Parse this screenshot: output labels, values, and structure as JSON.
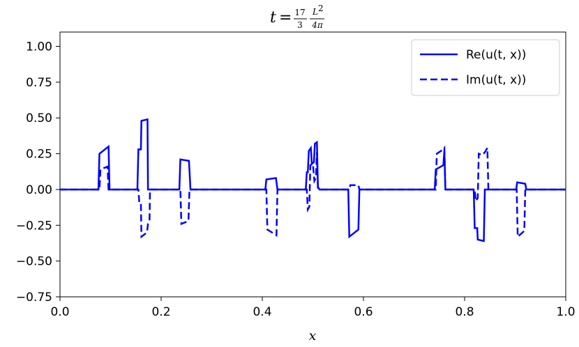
{
  "chart_data": {
    "type": "line",
    "title": {
      "lhs": "t",
      "eq": "=",
      "frac1_num": "17",
      "frac1_den": "3",
      "frac2_num": "L",
      "frac2_num_sup": "2",
      "frac2_den": "4π"
    },
    "xlabel": "x",
    "ylabel": "",
    "xlim": [
      0.0,
      1.0
    ],
    "ylim": [
      -0.75,
      1.1
    ],
    "x_ticks": [
      "0.0",
      "0.2",
      "0.4",
      "0.6",
      "0.8",
      "1.0"
    ],
    "x_tick_values": [
      0.0,
      0.2,
      0.4,
      0.6,
      0.8,
      1.0
    ],
    "y_ticks": [
      "1.00",
      "0.75",
      "0.50",
      "0.25",
      "0.00",
      "−0.25",
      "−0.50",
      "−0.75"
    ],
    "y_tick_values": [
      1.0,
      0.75,
      0.5,
      0.25,
      0.0,
      -0.25,
      -0.5,
      -0.75
    ],
    "grid": false,
    "legend_position": "top-right",
    "color": "#0000ff",
    "series": [
      {
        "name": "Re(u(t, x))",
        "style": "solid",
        "points": [
          [
            0.0,
            0.0
          ],
          [
            0.076,
            0.0
          ],
          [
            0.078,
            0.25
          ],
          [
            0.096,
            0.3
          ],
          [
            0.098,
            0.0
          ],
          [
            0.153,
            0.0
          ],
          [
            0.155,
            0.28
          ],
          [
            0.16,
            0.28
          ],
          [
            0.161,
            0.48
          ],
          [
            0.173,
            0.49
          ],
          [
            0.174,
            0.0
          ],
          [
            0.236,
            0.0
          ],
          [
            0.238,
            0.21
          ],
          [
            0.255,
            0.2
          ],
          [
            0.258,
            0.0
          ],
          [
            0.406,
            0.0
          ],
          [
            0.408,
            0.07
          ],
          [
            0.427,
            0.08
          ],
          [
            0.43,
            0.0
          ],
          [
            0.486,
            0.0
          ],
          [
            0.488,
            0.12
          ],
          [
            0.49,
            0.12
          ],
          [
            0.492,
            0.27
          ],
          [
            0.496,
            0.29
          ],
          [
            0.498,
            0.18
          ],
          [
            0.502,
            0.19
          ],
          [
            0.504,
            0.32
          ],
          [
            0.508,
            0.33
          ],
          [
            0.51,
            0.02
          ],
          [
            0.513,
            0.0
          ],
          [
            0.57,
            0.0
          ],
          [
            0.572,
            -0.33
          ],
          [
            0.59,
            -0.28
          ],
          [
            0.592,
            0.0
          ],
          [
            0.741,
            0.0
          ],
          [
            0.743,
            0.14
          ],
          [
            0.758,
            0.17
          ],
          [
            0.76,
            0.27
          ],
          [
            0.762,
            0.0
          ],
          [
            0.818,
            0.0
          ],
          [
            0.82,
            -0.27
          ],
          [
            0.825,
            -0.27
          ],
          [
            0.826,
            -0.35
          ],
          [
            0.838,
            -0.36
          ],
          [
            0.84,
            0.0
          ],
          [
            0.902,
            0.0
          ],
          [
            0.904,
            0.05
          ],
          [
            0.92,
            0.04
          ],
          [
            0.922,
            0.0
          ],
          [
            1.0,
            0.0
          ]
        ]
      },
      {
        "name": "Im(u(t, x))",
        "style": "dashed",
        "points": [
          [
            0.0,
            0.0
          ],
          [
            0.078,
            0.0
          ],
          [
            0.08,
            0.14
          ],
          [
            0.094,
            0.16
          ],
          [
            0.096,
            0.0
          ],
          [
            0.155,
            0.0
          ],
          [
            0.157,
            -0.1
          ],
          [
            0.16,
            -0.1
          ],
          [
            0.161,
            -0.33
          ],
          [
            0.172,
            -0.3
          ],
          [
            0.174,
            -0.24
          ],
          [
            0.177,
            -0.22
          ],
          [
            0.178,
            0.0
          ],
          [
            0.238,
            0.0
          ],
          [
            0.24,
            -0.24
          ],
          [
            0.254,
            -0.22
          ],
          [
            0.256,
            0.0
          ],
          [
            0.408,
            0.0
          ],
          [
            0.41,
            -0.28
          ],
          [
            0.428,
            -0.32
          ],
          [
            0.43,
            0.0
          ],
          [
            0.488,
            0.0
          ],
          [
            0.49,
            -0.14
          ],
          [
            0.493,
            -0.12
          ],
          [
            0.495,
            0.17
          ],
          [
            0.5,
            0.18
          ],
          [
            0.503,
            0.06
          ],
          [
            0.506,
            0.08
          ],
          [
            0.508,
            0.26
          ],
          [
            0.51,
            0.0
          ],
          [
            0.572,
            0.0
          ],
          [
            0.574,
            0.03
          ],
          [
            0.59,
            0.03
          ],
          [
            0.592,
            0.0
          ],
          [
            0.743,
            0.0
          ],
          [
            0.745,
            0.25
          ],
          [
            0.758,
            0.28
          ],
          [
            0.76,
            0.29
          ],
          [
            0.762,
            0.0
          ],
          [
            0.82,
            0.0
          ],
          [
            0.822,
            -0.08
          ],
          [
            0.826,
            -0.06
          ],
          [
            0.828,
            0.25
          ],
          [
            0.835,
            0.24
          ],
          [
            0.84,
            0.26
          ],
          [
            0.845,
            0.29
          ],
          [
            0.847,
            0.0
          ],
          [
            0.903,
            0.0
          ],
          [
            0.905,
            -0.33
          ],
          [
            0.918,
            -0.29
          ],
          [
            0.92,
            0.0
          ],
          [
            1.0,
            0.0
          ]
        ]
      }
    ]
  }
}
